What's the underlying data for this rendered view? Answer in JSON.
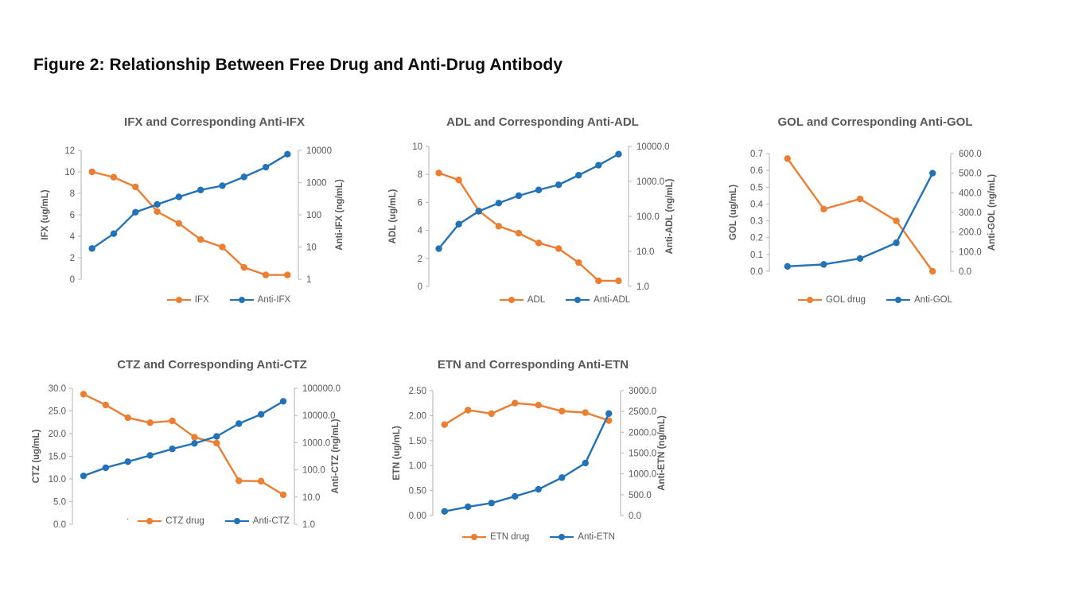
{
  "page": {
    "figure_title": "Figure 2: Relationship Between Free Drug and Anti-Drug Antibody"
  },
  "colors": {
    "drug": "#ED7D31",
    "antibody": "#2272B8",
    "axis_line": "#BFBFBF",
    "text": "#595959"
  },
  "chart_data": [
    {
      "type": "line",
      "title": "IFX and Corresponding Anti-IFX",
      "left_axis": {
        "label": "IFX (ug/mL)",
        "scale": "linear",
        "min": 0,
        "max": 12,
        "ticks": [
          "12",
          "10",
          "8",
          "6",
          "4",
          "2",
          "0"
        ]
      },
      "right_axis": {
        "label": "Anti-IFX (ng/mL)",
        "scale": "log",
        "min": 1,
        "max": 10000,
        "ticks": [
          "10000",
          "1000",
          "100",
          "10",
          "1"
        ]
      },
      "series": [
        {
          "name": "IFX",
          "role": "drug",
          "axis": "left",
          "values": [
            10,
            9.5,
            8.6,
            6.3,
            5.2,
            3.7,
            3.0,
            1.1,
            0.4,
            0.4
          ]
        },
        {
          "name": "Anti-IFX",
          "role": "antibody",
          "axis": "right",
          "values": [
            9,
            26,
            120,
            210,
            360,
            590,
            800,
            1500,
            3000,
            7600
          ]
        }
      ]
    },
    {
      "type": "line",
      "title": "ADL and Corresponding Anti-ADL",
      "left_axis": {
        "label": "ADL (ug/mL)",
        "scale": "linear",
        "min": 0,
        "max": 10,
        "ticks": [
          "10",
          "8",
          "6",
          "4",
          "2",
          "0"
        ]
      },
      "right_axis": {
        "label": "Anti-ADL (ng/mL)",
        "scale": "log",
        "min": 1,
        "max": 10000,
        "ticks": [
          "10000.0",
          "1000.0",
          "100.0",
          "10.0",
          "1.0"
        ]
      },
      "series": [
        {
          "name": "ADL",
          "role": "drug",
          "axis": "left",
          "values": [
            8.1,
            7.6,
            5.4,
            4.3,
            3.8,
            3.1,
            2.7,
            1.7,
            0.4,
            0.4
          ]
        },
        {
          "name": "Anti-ADL",
          "role": "antibody",
          "axis": "right",
          "values": [
            12,
            60,
            140,
            240,
            390,
            570,
            800,
            1500,
            2900,
            6000
          ]
        }
      ]
    },
    {
      "type": "line",
      "title": "GOL and Corresponding Anti-GOL",
      "left_axis": {
        "label": "GOL (ug/mL)",
        "scale": "linear",
        "min": 0,
        "max": 0.7,
        "ticks": [
          "0.7",
          "0.6",
          "0.5",
          "0.4",
          "0.3",
          "0.2",
          "0.1",
          "0.0"
        ]
      },
      "right_axis": {
        "label": "Anti-GOL (ng/mL)",
        "scale": "linear",
        "min": 0,
        "max": 600,
        "ticks": [
          "600.0",
          "500.0",
          "400.0",
          "300.0",
          "200.0",
          "100.0",
          "0.0"
        ]
      },
      "series": [
        {
          "name": "GOL drug",
          "role": "drug",
          "axis": "left",
          "values": [
            0.67,
            0.37,
            0.43,
            0.3,
            0.0
          ]
        },
        {
          "name": "Anti-GOL",
          "role": "antibody",
          "axis": "right",
          "values": [
            25,
            35,
            65,
            145,
            500
          ]
        }
      ]
    },
    {
      "type": "line",
      "title": "CTZ and Corresponding Anti-CTZ",
      "stray_mark": ".",
      "left_axis": {
        "label": "CTZ (ug/mL)",
        "scale": "linear",
        "min": 0,
        "max": 30,
        "ticks": [
          "30.0",
          "25.0",
          "20.0",
          "15.0",
          "10.0",
          "5.0",
          "0.0"
        ]
      },
      "right_axis": {
        "label": "Anti-CTZ (ng/mL)",
        "scale": "log",
        "min": 1,
        "max": 100000,
        "ticks": [
          "100000.0",
          "10000.0",
          "1000.0",
          "100.0",
          "10.0",
          "1.0"
        ]
      },
      "series": [
        {
          "name": "CTZ drug",
          "role": "drug",
          "axis": "left",
          "values": [
            28.7,
            26.3,
            23.5,
            22.4,
            22.8,
            19.2,
            17.9,
            9.6,
            9.5,
            6.5
          ]
        },
        {
          "name": "Anti-CTZ",
          "role": "antibody",
          "axis": "right",
          "values": [
            60,
            120,
            200,
            340,
            590,
            940,
            1700,
            5000,
            11000,
            33000
          ]
        }
      ]
    },
    {
      "type": "line",
      "title": "ETN and Corresponding Anti-ETN",
      "left_axis": {
        "label": "ETN (ug/mL)",
        "scale": "linear",
        "min": 0,
        "max": 2.5,
        "ticks": [
          "2.50",
          "2.00",
          "1.50",
          "1.00",
          "0.50",
          "0.00"
        ]
      },
      "right_axis": {
        "label": "Anti-ETN (ng/mL)",
        "scale": "linear",
        "min": 0,
        "max": 3000,
        "ticks": [
          "3000.0",
          "2500.0",
          "2000.0",
          "1500.0",
          "1000.0",
          "500.0",
          "0.0"
        ]
      },
      "series": [
        {
          "name": "ETN drug",
          "role": "drug",
          "axis": "left",
          "values": [
            1.82,
            2.11,
            2.04,
            2.25,
            2.21,
            2.09,
            2.06,
            1.9
          ]
        },
        {
          "name": "Anti-ETN",
          "role": "antibody",
          "axis": "right",
          "values": [
            100,
            210,
            300,
            460,
            630,
            910,
            1260,
            2450
          ]
        }
      ]
    }
  ]
}
